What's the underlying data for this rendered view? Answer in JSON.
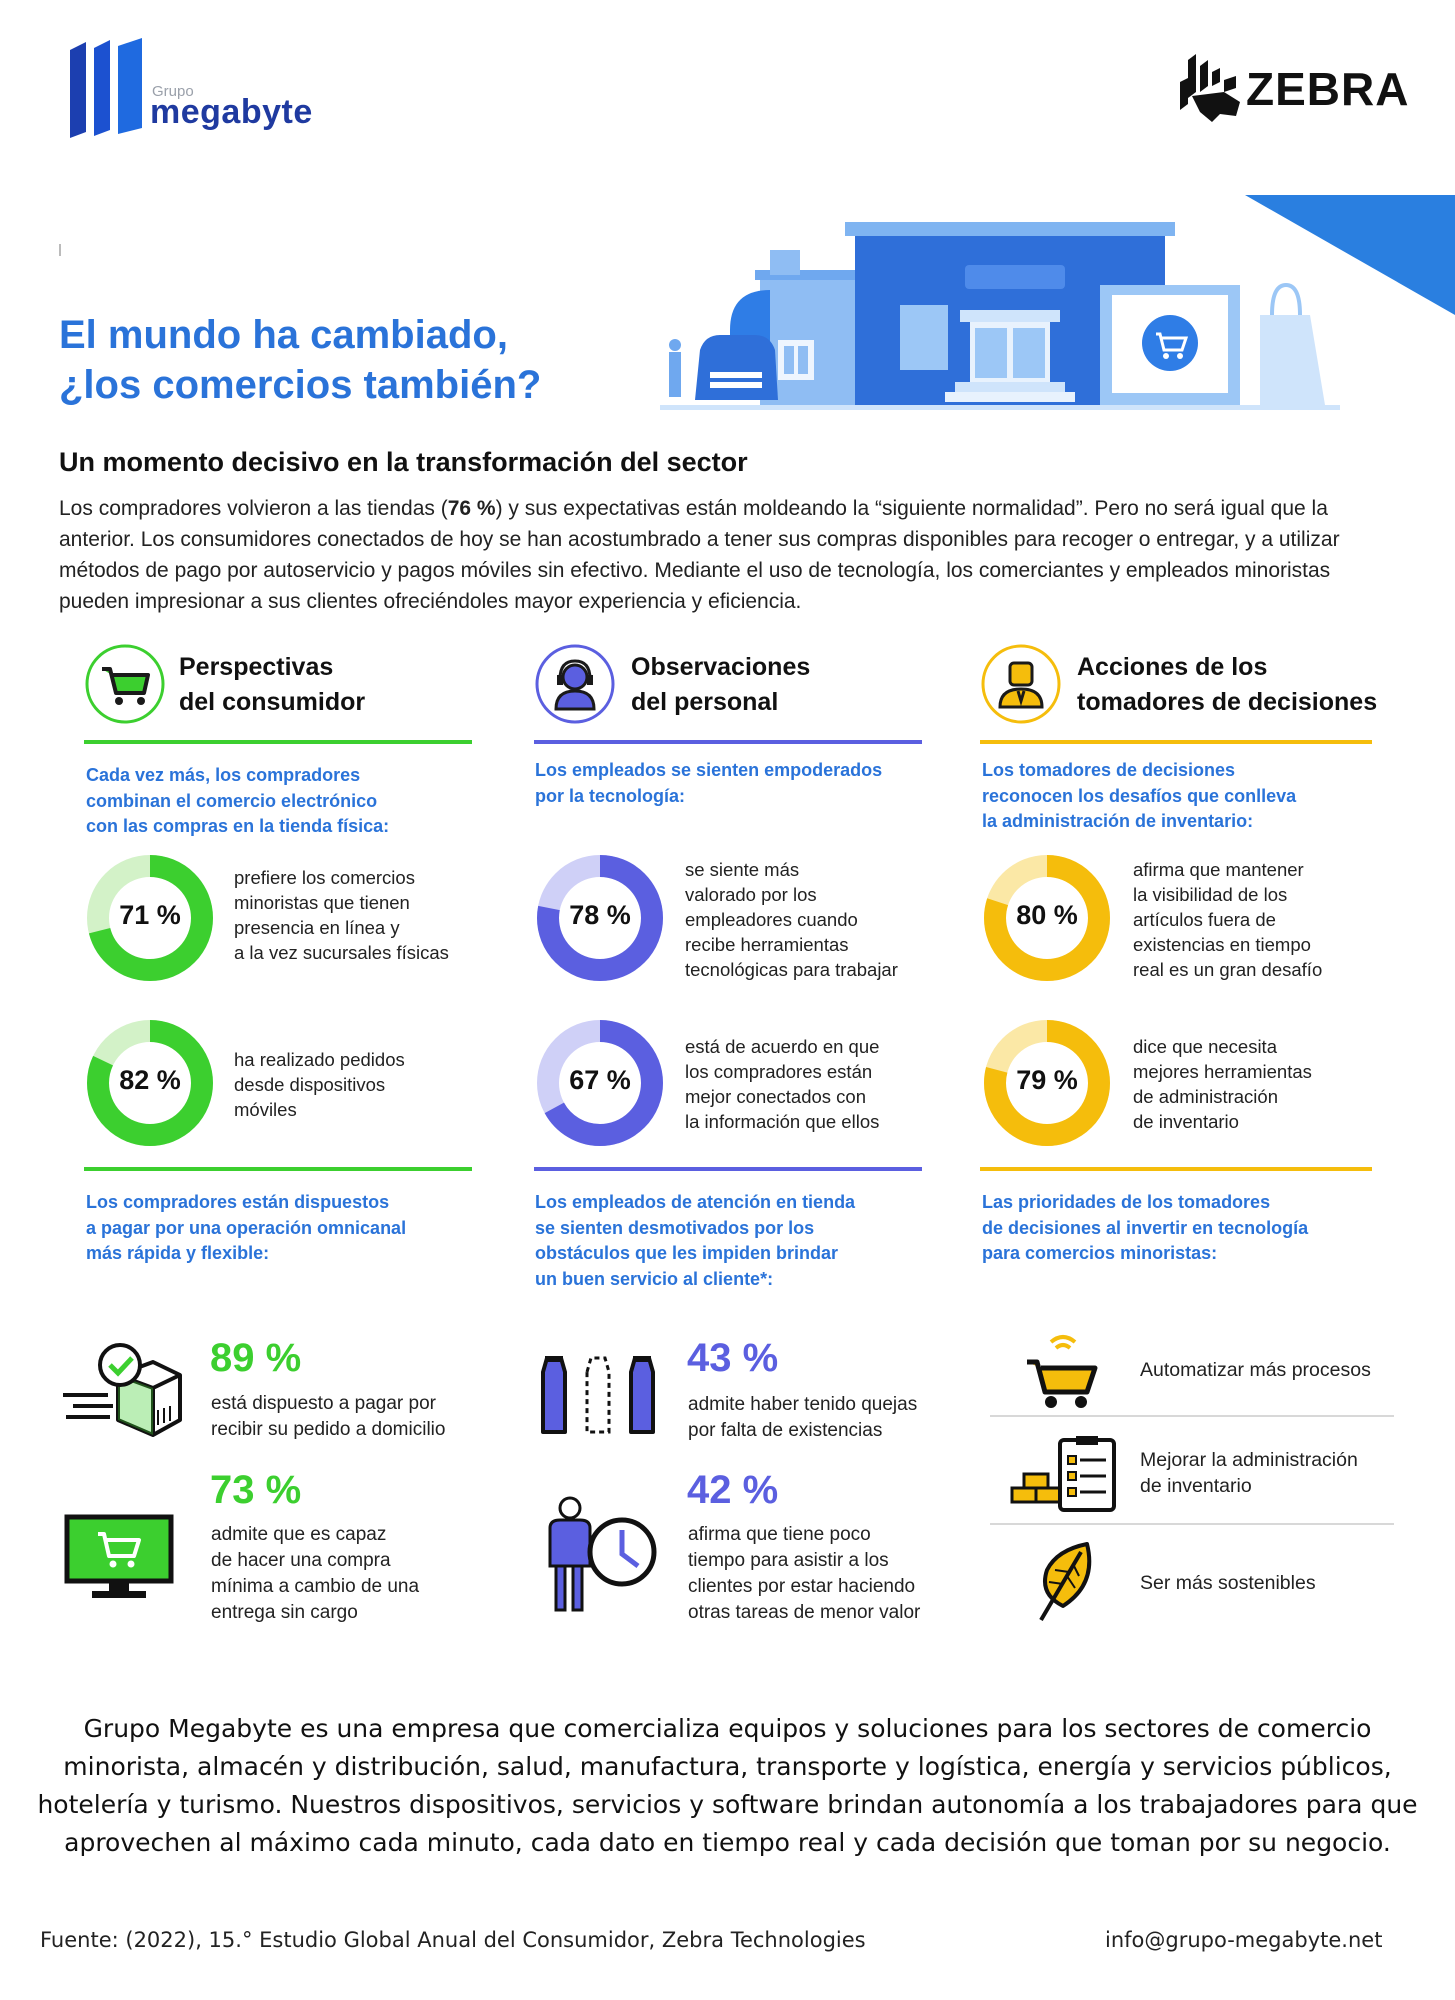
{
  "header": {
    "logo_small": "Grupo",
    "logo_big": "megabyte",
    "partner_logo": "ZEBRA"
  },
  "hero": {
    "title_line1": "El mundo ha cambiado,",
    "title_line2": "¿los comercios también?"
  },
  "intro": {
    "heading": "Un momento decisivo en la transformación del sector",
    "p_before_bold": "Los compradores volvieron a las tiendas (",
    "p_bold": "76 %",
    "p_after_bold": ") y sus expectativas están moldeando la “siguiente normalidad”. Pero no será igual que la anterior. Los consumidores conectados de hoy se han acostumbrado a tener sus compras disponibles para recoger o entregar, y a utilizar métodos de pago por autoservicio y pagos móviles sin efectivo. Mediante el uso de tecnología, los comerciantes y empleados minoristas pueden impresionar a sus clientes ofreciéndoles mayor experiencia y eficiencia."
  },
  "colors": {
    "green": "#3ccf2f",
    "green_light": "#d3f2c8",
    "purple": "#5b5fe0",
    "purple_light": "#cfd0f7",
    "yellow": "#f5bd0c",
    "yellow_light": "#fbe8a6",
    "blue_title": "#2a73d9"
  },
  "columns": [
    {
      "title1": "Perspectivas",
      "title2": "del consumidor",
      "icon": "cart-icon",
      "intro_line1": "Cada vez más, los compradores",
      "intro_line2": "combinan el comercio electrónico",
      "intro_line3": "con las compras en la tienda física:",
      "donuts": [
        {
          "label": "71 %",
          "value": 71,
          "l1": "prefiere los comercios",
          "l2": "minoristas que tienen",
          "l3": "presencia en línea y",
          "l4": "a la vez sucursales físicas"
        },
        {
          "label": "82 %",
          "value": 82,
          "l1": "ha realizado pedidos",
          "l2": "desde dispositivos",
          "l3": "móviles",
          "l4": ""
        }
      ],
      "second_line1": "Los compradores están dispuestos",
      "second_line2": "a pagar por una operación omnicanal",
      "second_line3": "más rápida y flexible:",
      "second_line4": ""
    },
    {
      "title1": "Observaciones",
      "title2": "del personal",
      "icon": "headset-person-icon",
      "intro_line1": "Los empleados se sienten empoderados",
      "intro_line2": "por la tecnología:",
      "intro_line3": "",
      "donuts": [
        {
          "label": "78 %",
          "value": 78,
          "l1": "se siente más",
          "l2": "valorado por los",
          "l3": "empleadores cuando",
          "l4": "recibe herramientas",
          "l5": "tecnológicas para trabajar"
        },
        {
          "label": "67 %",
          "value": 67,
          "l1": "está de acuerdo en que",
          "l2": "los compradores están",
          "l3": "mejor conectados con",
          "l4": "la información que ellos"
        }
      ],
      "second_line1": "Los empleados de atención en tienda",
      "second_line2": "se sienten desmotivados por los",
      "second_line3": "obstáculos que les impiden brindar",
      "second_line4": "un buen servicio al cliente*:"
    },
    {
      "title1": "Acciones de los",
      "title2": "tomadores de decisiones",
      "icon": "manager-person-icon",
      "intro_line1": "Los tomadores de decisiones",
      "intro_line2": "reconocen los desafíos que conlleva",
      "intro_line3": "la administración de inventario:",
      "donuts": [
        {
          "label": "80 %",
          "value": 80,
          "l1": "afirma que mantener",
          "l2": "la visibilidad de los",
          "l3": "artículos fuera de",
          "l4": "existencias en tiempo",
          "l5": "real es un gran desafío"
        },
        {
          "label": "79 %",
          "value": 79,
          "l1": "dice que necesita",
          "l2": "mejores herramientas",
          "l3": "de administración",
          "l4": "de inventario"
        }
      ],
      "second_line1": "Las prioridades de los tomadores",
      "second_line2": "de decisiones al invertir en tecnología",
      "second_line3": "para comercios minoristas:",
      "second_line4": ""
    }
  ],
  "stats": {
    "s89": {
      "pct": "89 %",
      "l1": "está dispuesto a pagar por",
      "l2": "recibir su pedido a domicilio"
    },
    "s73": {
      "pct": "73 %",
      "l1": "admite que es capaz",
      "l2": "de hacer una compra",
      "l3": "mínima a cambio de una",
      "l4": "entrega sin cargo"
    },
    "s43": {
      "pct": "43 %",
      "l1": "admite haber tenido quejas",
      "l2": "por falta de existencias"
    },
    "s42": {
      "pct": "42 %",
      "l1": "afirma que tiene poco",
      "l2": "tiempo para asistir a los",
      "l3": "clientes por estar haciendo",
      "l4": "otras tareas de menor valor"
    }
  },
  "priorities": [
    {
      "l1": "Automatizar más procesos",
      "l2": ""
    },
    {
      "l1": "Mejorar la administración",
      "l2": "de inventario"
    },
    {
      "l1": "Ser más sostenibles",
      "l2": ""
    }
  ],
  "footer": {
    "para": "Grupo Megabyte es una empresa que comercializa equipos y soluciones para los sectores de comercio minorista, almacén y distribución, salud, manufactura, transporte y logística, energía y servicios públicos, hotelería y turismo. Nuestros dispositivos, servicios y software brindan autonomía a los trabajadores para que aprovechen al máximo cada minuto, cada dato en tiempo real y cada decisión que toman por su negocio.",
    "source": "Fuente: (2022), 15.° Estudio Global Anual del Consumidor, Zebra Technologies",
    "email": "info@grupo-megabyte.net"
  }
}
